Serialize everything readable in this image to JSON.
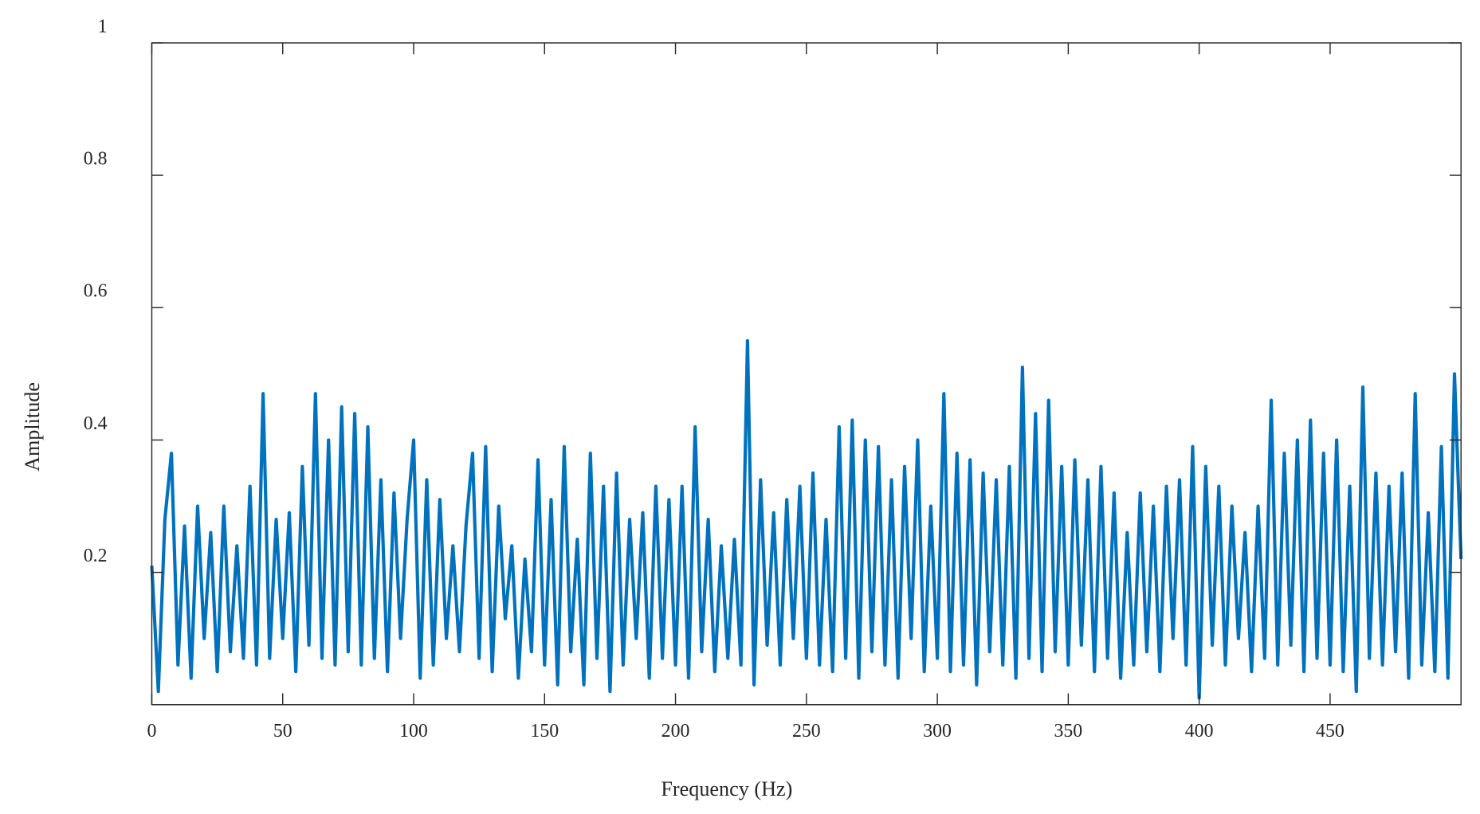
{
  "chart_data": {
    "type": "line",
    "x_label": "Frequency (Hz)",
    "y_label": "Amplitude",
    "color": "#0072bd",
    "x": [
      0,
      2.5,
      5,
      7.5,
      10,
      12.5,
      15,
      17.5,
      20,
      22.5,
      25,
      27.5,
      30,
      32.5,
      35,
      37.5,
      40,
      42.5,
      45,
      47.5,
      50,
      52.5,
      55,
      57.5,
      60,
      62.5,
      65,
      67.5,
      70,
      72.5,
      75,
      77.5,
      80,
      82.5,
      85,
      87.5,
      90,
      92.5,
      95,
      97.5,
      100,
      102.5,
      105,
      107.5,
      110,
      112.5,
      115,
      117.5,
      120,
      122.5,
      125,
      127.5,
      130,
      132.5,
      135,
      137.5,
      140,
      142.5,
      145,
      147.5,
      150,
      152.5,
      155,
      157.5,
      160,
      162.5,
      165,
      167.5,
      170,
      172.5,
      175,
      177.5,
      180,
      182.5,
      185,
      187.5,
      190,
      192.5,
      195,
      197.5,
      200,
      202.5,
      205,
      207.5,
      210,
      212.5,
      215,
      217.5,
      220,
      222.5,
      225,
      227.5,
      230,
      232.5,
      235,
      237.5,
      240,
      242.5,
      245,
      247.5,
      250,
      252.5,
      255,
      257.5,
      260,
      262.5,
      265,
      267.5,
      270,
      272.5,
      275,
      277.5,
      280,
      282.5,
      285,
      287.5,
      290,
      292.5,
      295,
      297.5,
      300,
      302.5,
      305,
      307.5,
      310,
      312.5,
      315,
      317.5,
      320,
      322.5,
      325,
      327.5,
      330,
      332.5,
      335,
      337.5,
      340,
      342.5,
      345,
      347.5,
      350,
      352.5,
      355,
      357.5,
      360,
      362.5,
      365,
      367.5,
      370,
      372.5,
      375,
      377.5,
      380,
      382.5,
      385,
      387.5,
      390,
      392.5,
      395,
      397.5,
      400,
      402.5,
      405,
      407.5,
      410,
      412.5,
      415,
      417.5,
      420,
      422.5,
      425,
      427.5,
      430,
      432.5,
      435,
      437.5,
      440,
      442.5,
      445,
      447.5,
      450,
      452.5,
      455,
      457.5,
      460,
      462.5,
      465,
      467.5,
      470,
      472.5,
      475,
      477.5,
      480,
      482.5,
      485,
      487.5,
      490,
      492.5,
      495,
      497.5,
      500
    ],
    "values": [
      0.21,
      0.02,
      0.28,
      0.38,
      0.06,
      0.27,
      0.04,
      0.3,
      0.1,
      0.26,
      0.05,
      0.3,
      0.08,
      0.24,
      0.07,
      0.33,
      0.06,
      0.47,
      0.07,
      0.28,
      0.1,
      0.29,
      0.05,
      0.36,
      0.09,
      0.47,
      0.07,
      0.4,
      0.06,
      0.45,
      0.08,
      0.44,
      0.06,
      0.42,
      0.07,
      0.34,
      0.05,
      0.32,
      0.1,
      0.28,
      0.4,
      0.04,
      0.34,
      0.06,
      0.31,
      0.1,
      0.24,
      0.08,
      0.27,
      0.38,
      0.07,
      0.39,
      0.05,
      0.3,
      0.13,
      0.24,
      0.04,
      0.22,
      0.08,
      0.37,
      0.06,
      0.31,
      0.03,
      0.39,
      0.08,
      0.25,
      0.03,
      0.38,
      0.07,
      0.33,
      0.02,
      0.35,
      0.06,
      0.28,
      0.1,
      0.29,
      0.04,
      0.33,
      0.07,
      0.31,
      0.06,
      0.33,
      0.04,
      0.42,
      0.08,
      0.28,
      0.05,
      0.24,
      0.07,
      0.25,
      0.06,
      0.55,
      0.03,
      0.34,
      0.09,
      0.29,
      0.06,
      0.31,
      0.1,
      0.33,
      0.07,
      0.35,
      0.06,
      0.28,
      0.05,
      0.42,
      0.07,
      0.43,
      0.04,
      0.4,
      0.08,
      0.39,
      0.06,
      0.34,
      0.04,
      0.36,
      0.1,
      0.4,
      0.05,
      0.3,
      0.07,
      0.47,
      0.05,
      0.38,
      0.06,
      0.37,
      0.03,
      0.35,
      0.08,
      0.34,
      0.06,
      0.36,
      0.04,
      0.51,
      0.07,
      0.44,
      0.05,
      0.46,
      0.08,
      0.36,
      0.06,
      0.37,
      0.09,
      0.34,
      0.05,
      0.36,
      0.07,
      0.32,
      0.04,
      0.26,
      0.06,
      0.32,
      0.08,
      0.3,
      0.05,
      0.33,
      0.1,
      0.34,
      0.06,
      0.39,
      0.01,
      0.36,
      0.09,
      0.33,
      0.06,
      0.3,
      0.1,
      0.26,
      0.05,
      0.3,
      0.07,
      0.46,
      0.06,
      0.38,
      0.09,
      0.4,
      0.05,
      0.43,
      0.07,
      0.38,
      0.06,
      0.4,
      0.05,
      0.33,
      0.02,
      0.48,
      0.07,
      0.35,
      0.06,
      0.33,
      0.08,
      0.35,
      0.04,
      0.47,
      0.06,
      0.29,
      0.05,
      0.39,
      0.04,
      0.5,
      0.22
    ],
    "xlim": [
      0,
      500
    ],
    "xticks": [
      0,
      50,
      100,
      150,
      200,
      250,
      300,
      350,
      400,
      450
    ],
    "ylim": [
      0,
      1
    ],
    "yticks": [
      0.2,
      0.4,
      0.6,
      0.8,
      1
    ]
  }
}
